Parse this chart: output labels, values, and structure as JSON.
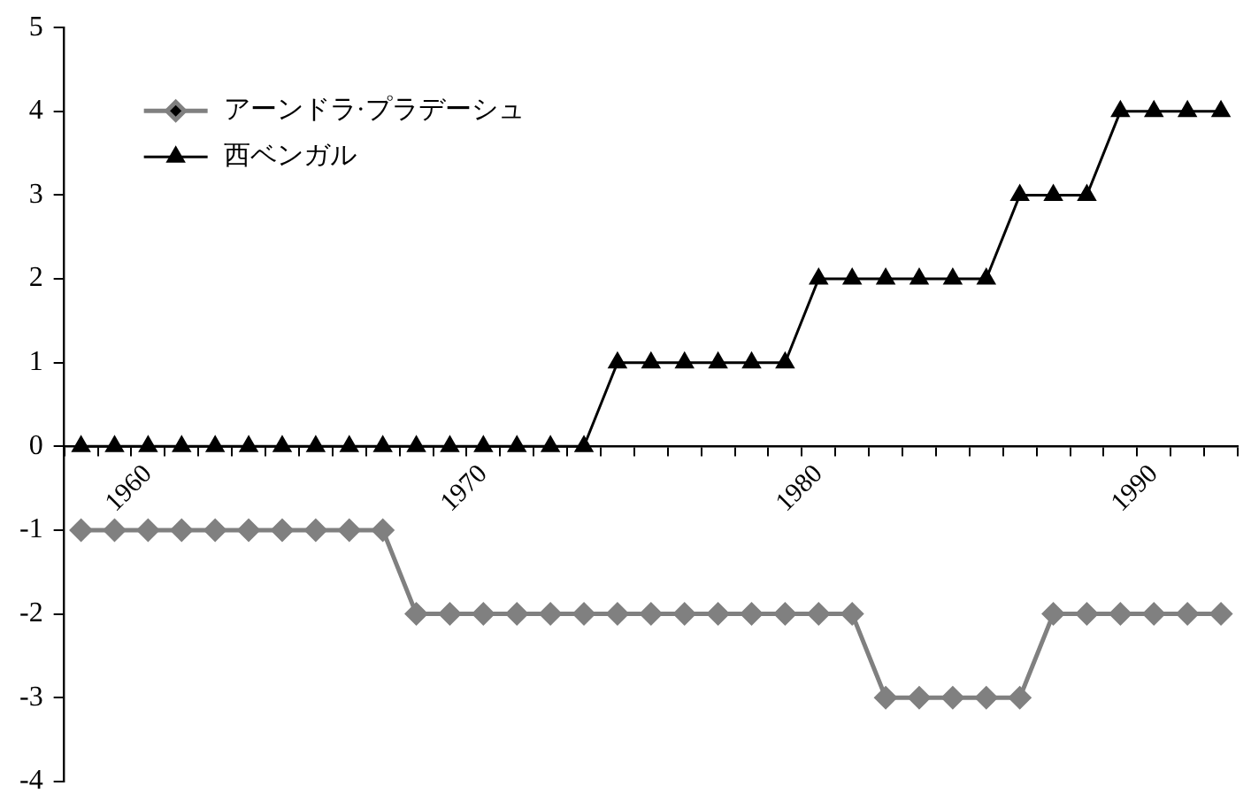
{
  "chart_data": {
    "type": "line",
    "categories": [
      null,
      null,
      "1960",
      null,
      null,
      null,
      null,
      null,
      null,
      null,
      null,
      null,
      "1970",
      null,
      null,
      null,
      null,
      null,
      null,
      null,
      null,
      null,
      "1980",
      null,
      null,
      null,
      null,
      null,
      null,
      null,
      null,
      null,
      "1990",
      null,
      null
    ],
    "series": [
      {
        "name": "アーンドラ·プラデーシュ",
        "color": "#808080",
        "marker": "diamond",
        "values": [
          -1,
          -1,
          -1,
          -1,
          -1,
          -1,
          -1,
          -1,
          -1,
          -1,
          -2,
          -2,
          -2,
          -2,
          -2,
          -2,
          -2,
          -2,
          -2,
          -2,
          -2,
          -2,
          -2,
          -2,
          -3,
          -3,
          -3,
          -3,
          -3,
          -2,
          -2,
          -2,
          -2,
          -2,
          -2
        ]
      },
      {
        "name": "西ベンガル",
        "color": "#000000",
        "marker": "triangle",
        "values": [
          0,
          0,
          0,
          0,
          0,
          0,
          0,
          0,
          0,
          0,
          0,
          0,
          0,
          0,
          0,
          0,
          1,
          1,
          1,
          1,
          1,
          1,
          2,
          2,
          2,
          2,
          2,
          2,
          3,
          3,
          3,
          4,
          4,
          4,
          4
        ]
      }
    ],
    "ylim": [
      -4,
      5
    ],
    "yticks": [
      -4,
      -3,
      -2,
      -1,
      0,
      1,
      2,
      3,
      4,
      5
    ],
    "grid": false,
    "legend": "top left"
  }
}
